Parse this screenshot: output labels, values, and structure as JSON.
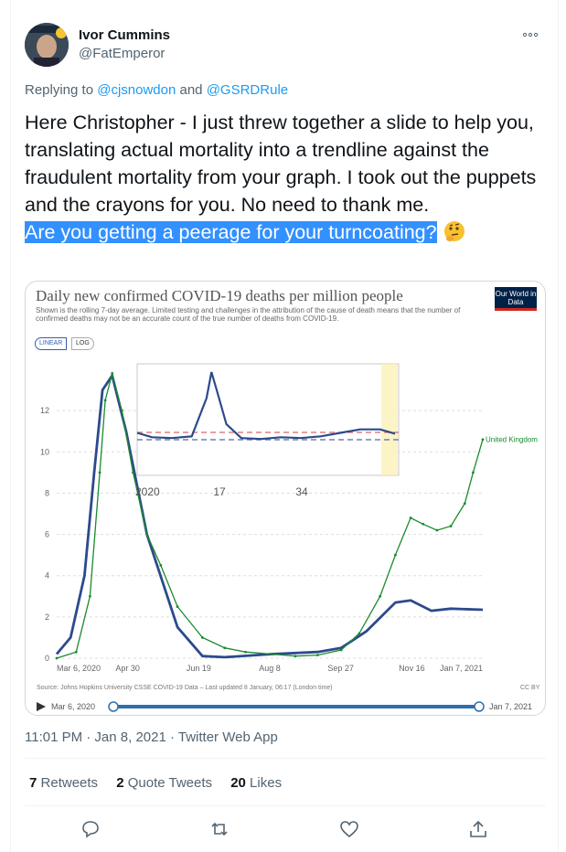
{
  "author": {
    "name": "Ivor Cummins",
    "handle": "@FatEmperor"
  },
  "reply": {
    "prefix": "Replying to",
    "mention1": "@cjsnowdon",
    "and": "and",
    "mention2": "@GSRDRule"
  },
  "tweet": {
    "text": "Here Christopher - I just threw together a slide to help you, translating actual mortality into a trendline against the fraudulent mortality from your graph.  I took out the puppets and the crayons for you. No need to thank me.",
    "highlighted": "Are you getting a peerage for your turncoating?",
    "emoji": "thinking-face"
  },
  "chart": {
    "title": "Daily new confirmed COVID-19 deaths per million people",
    "subtitle": "Shown is the rolling 7-day average. Limited testing and challenges in the attribution of the cause of death means that the number of confirmed deaths may not be an accurate count of the true number of deaths from COVID-19.",
    "logo": "Our World in Data",
    "toggle_linear": "LINEAR",
    "toggle_log": "LOG",
    "series_label": "United Kingdom",
    "source": "Source: Johns Hopkins University CSSE COVID-19 Data – Last updated 8 January, 06:17 (London time)",
    "license": "CC BY",
    "timeline_start": "Mar 6, 2020",
    "timeline_end": "Jan 7, 2021",
    "accent_green": "#1b8a2e",
    "accent_blue": "#2c4a8c"
  },
  "chart_data": [
    {
      "type": "line",
      "y_ticks": [
        "0",
        "2",
        "4",
        "6",
        "8",
        "10",
        "12"
      ],
      "ylim": [
        0,
        14
      ],
      "x_ticks": [
        "Mar 6, 2020",
        "Apr 30",
        "Jun 19",
        "Aug 8",
        "Sep 27",
        "Nov 16",
        "Jan 7, 2021"
      ],
      "series": [
        {
          "name": "United Kingdom",
          "color": "#1b8a2e",
          "x": [
            "2020-03-06",
            "2020-03-20",
            "2020-03-30",
            "2020-04-06",
            "2020-04-10",
            "2020-04-15",
            "2020-04-22",
            "2020-04-30",
            "2020-05-10",
            "2020-05-20",
            "2020-06-01",
            "2020-06-19",
            "2020-07-05",
            "2020-07-20",
            "2020-08-08",
            "2020-08-25",
            "2020-09-10",
            "2020-09-27",
            "2020-10-10",
            "2020-10-25",
            "2020-11-05",
            "2020-11-16",
            "2020-11-25",
            "2020-12-05",
            "2020-12-15",
            "2020-12-25",
            "2020-12-31",
            "2021-01-07"
          ],
          "values": [
            0,
            0.3,
            3,
            9,
            12.5,
            13.8,
            12,
            9,
            6,
            4.5,
            2.5,
            1,
            0.5,
            0.3,
            0.2,
            0.1,
            0.15,
            0.4,
            1.2,
            3,
            5,
            6.8,
            6.5,
            6.2,
            6.4,
            7.5,
            9,
            10.6
          ]
        },
        {
          "name": "",
          "color": "#2c4a8c",
          "x": [
            "2020-03-06",
            "2020-03-16",
            "2020-03-26",
            "2020-04-02",
            "2020-04-08",
            "2020-04-15",
            "2020-04-25",
            "2020-05-10",
            "2020-06-01",
            "2020-06-19",
            "2020-07-05",
            "2020-08-08",
            "2020-09-10",
            "2020-09-27",
            "2020-10-15",
            "2020-11-05",
            "2020-11-16",
            "2020-12-01",
            "2020-12-15",
            "2021-01-07"
          ],
          "values": [
            0.2,
            1,
            4,
            9,
            13,
            13.7,
            11,
            6,
            1.5,
            0.1,
            0.05,
            0.2,
            0.3,
            0.5,
            1.3,
            2.7,
            2.8,
            2.3,
            2.4,
            2.35
          ]
        }
      ]
    },
    {
      "type": "line",
      "x_ticks": [
        "2020",
        "17",
        "34"
      ],
      "series": [
        {
          "name": "",
          "color": "#2c4a8c",
          "x": [
            1,
            4,
            8,
            12,
            15,
            16,
            17,
            19,
            22,
            26,
            30,
            34,
            38,
            42,
            46,
            50,
            53
          ],
          "values": [
            1.0,
            0.5,
            0.4,
            0.6,
            5,
            8,
            6,
            2,
            0.4,
            0.3,
            0.5,
            0.4,
            0.6,
            1,
            1.4,
            1.4,
            0.9
          ]
        }
      ]
    }
  ],
  "meta": {
    "time": "11:01 PM · Jan 8, 2021 · Twitter Web App"
  },
  "stats": {
    "retweets_count": "7",
    "retweets_label": "Retweets",
    "quotes_count": "2",
    "quotes_label": "Quote Tweets",
    "likes_count": "20",
    "likes_label": "Likes"
  }
}
